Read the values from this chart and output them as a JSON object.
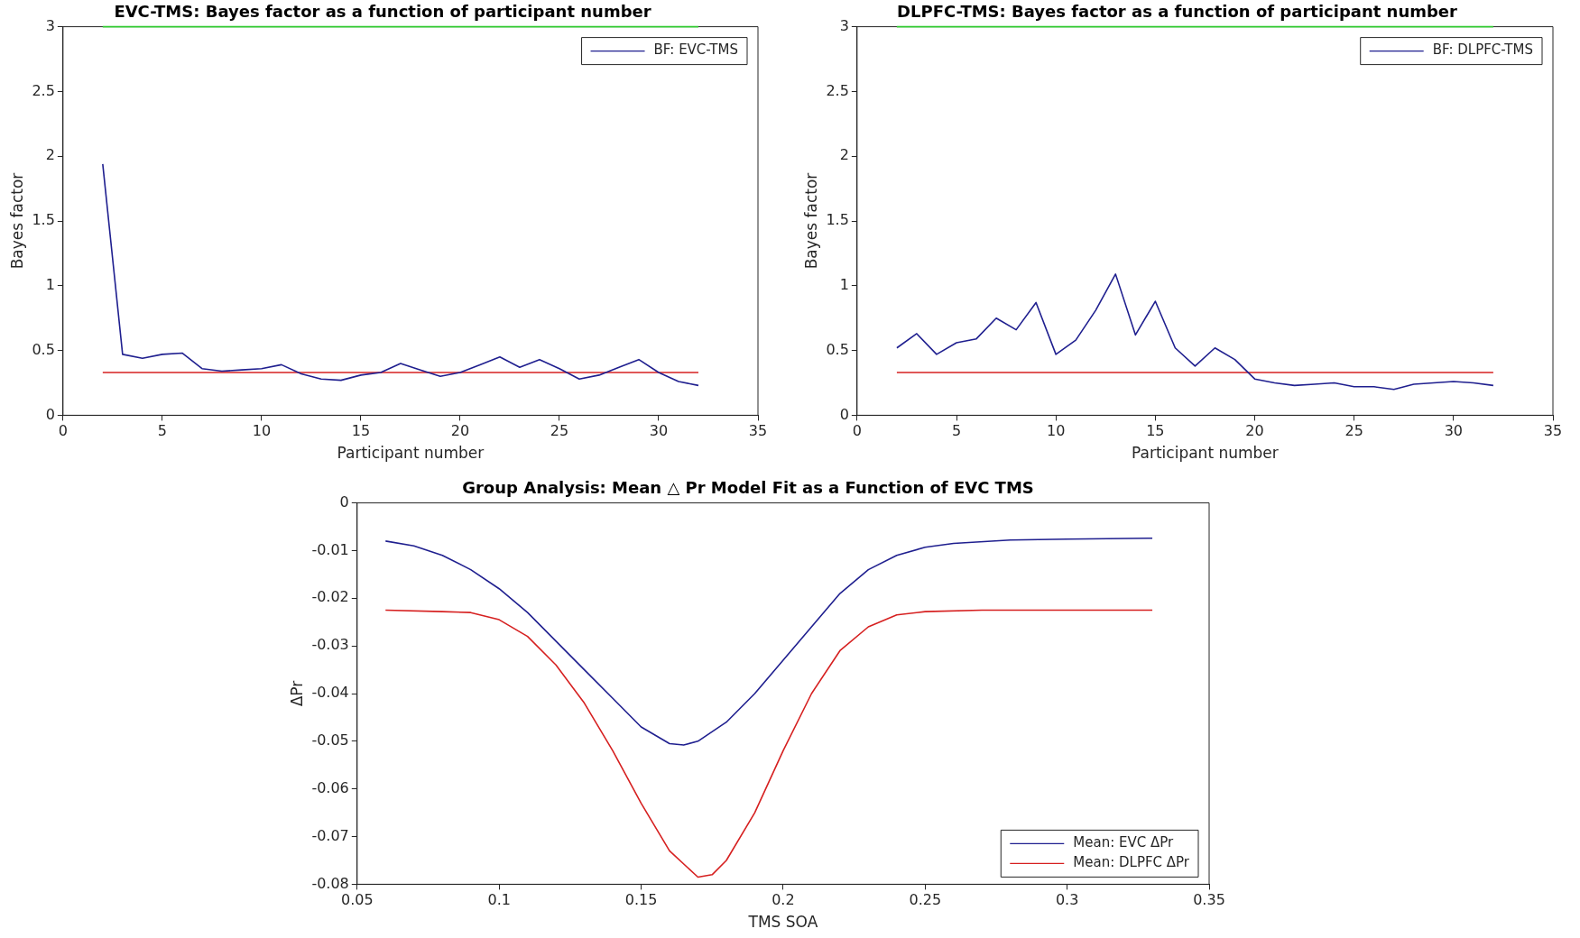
{
  "chart_data": [
    {
      "type": "line",
      "title": "EVC-TMS: Bayes factor as a function of participant number",
      "xlabel": "Participant number",
      "ylabel": "Bayes factor",
      "x": [
        2,
        3,
        4,
        5,
        6,
        7,
        8,
        9,
        10,
        11,
        12,
        13,
        14,
        15,
        16,
        17,
        18,
        19,
        20,
        21,
        22,
        23,
        24,
        25,
        26,
        27,
        28,
        29,
        30,
        31,
        32
      ],
      "xlim": [
        0,
        35
      ],
      "xticks": [
        0,
        5,
        10,
        15,
        20,
        25,
        30,
        35
      ],
      "ylim": [
        0,
        3
      ],
      "yticks": [
        0,
        0.5,
        1,
        1.5,
        2,
        2.5,
        3
      ],
      "grid": false,
      "legend": "top right",
      "marker": "none",
      "line_style": "solid",
      "series": [
        {
          "name": "BF: EVC-TMS",
          "color": "#1f1f8f",
          "values": [
            1.94,
            0.47,
            0.44,
            0.47,
            0.48,
            0.36,
            0.34,
            0.35,
            0.36,
            0.39,
            0.32,
            0.28,
            0.27,
            0.31,
            0.33,
            0.4,
            0.35,
            0.3,
            0.33,
            0.39,
            0.45,
            0.37,
            0.43,
            0.36,
            0.28,
            0.31,
            0.37,
            0.43,
            0.33,
            0.26,
            0.23
          ]
        },
        {
          "color": "#d62020",
          "x": [
            2,
            32
          ],
          "values": [
            0.33,
            0.33
          ]
        },
        {
          "color": "#33cc33",
          "x": [
            2,
            32
          ],
          "values": [
            3,
            3
          ]
        }
      ]
    },
    {
      "type": "line",
      "title": "DLPFC-TMS: Bayes factor as a function of participant number",
      "xlabel": "Participant number",
      "ylabel": "Bayes factor",
      "x": [
        2,
        3,
        4,
        5,
        6,
        7,
        8,
        9,
        10,
        11,
        12,
        13,
        14,
        15,
        16,
        17,
        18,
        19,
        20,
        21,
        22,
        23,
        24,
        25,
        26,
        27,
        28,
        29,
        30,
        31,
        32
      ],
      "xlim": [
        0,
        35
      ],
      "xticks": [
        0,
        5,
        10,
        15,
        20,
        25,
        30,
        35
      ],
      "ylim": [
        0,
        3
      ],
      "yticks": [
        0,
        0.5,
        1,
        1.5,
        2,
        2.5,
        3
      ],
      "grid": false,
      "legend": "top right",
      "marker": "none",
      "line_style": "solid",
      "series": [
        {
          "name": "BF: DLPFC-TMS",
          "color": "#1f1f8f",
          "values": [
            0.52,
            0.63,
            0.47,
            0.56,
            0.59,
            0.75,
            0.66,
            0.87,
            0.47,
            0.58,
            0.81,
            1.09,
            0.62,
            0.88,
            0.52,
            0.38,
            0.52,
            0.43,
            0.28,
            0.25,
            0.23,
            0.24,
            0.25,
            0.22,
            0.22,
            0.2,
            0.24,
            0.25,
            0.26,
            0.25,
            0.23
          ]
        },
        {
          "color": "#d62020",
          "x": [
            2,
            32
          ],
          "values": [
            0.33,
            0.33
          ]
        },
        {
          "color": "#33cc33",
          "x": [
            2,
            32
          ],
          "values": [
            3,
            3
          ]
        }
      ]
    },
    {
      "type": "line",
      "title": "Group Analysis: Mean △ Pr Model Fit as a Function of EVC TMS",
      "xlabel": "TMS SOA",
      "ylabel": "ΔPr",
      "xlim": [
        0.05,
        0.35
      ],
      "xticks": [
        0.05,
        0.1,
        0.15,
        0.2,
        0.25,
        0.3,
        0.35
      ],
      "ylim": [
        -0.08,
        0
      ],
      "yticks": [
        -0.08,
        -0.07,
        -0.06,
        -0.05,
        -0.04,
        -0.03,
        -0.02,
        -0.01,
        0
      ],
      "grid": false,
      "legend": "bottom right",
      "marker": "none",
      "line_style": "solid",
      "series": [
        {
          "name": "Mean: EVC ΔPr",
          "color": "#1f1f8f",
          "x": [
            0.06,
            0.07,
            0.08,
            0.09,
            0.1,
            0.11,
            0.12,
            0.13,
            0.14,
            0.15,
            0.16,
            0.165,
            0.17,
            0.18,
            0.19,
            0.2,
            0.21,
            0.22,
            0.23,
            0.24,
            0.25,
            0.26,
            0.28,
            0.3,
            0.33
          ],
          "values": [
            -0.008,
            -0.009,
            -0.011,
            -0.014,
            -0.018,
            -0.023,
            -0.029,
            -0.035,
            -0.041,
            -0.047,
            -0.0505,
            -0.0508,
            -0.05,
            -0.046,
            -0.04,
            -0.033,
            -0.026,
            -0.019,
            -0.014,
            -0.011,
            -0.0093,
            -0.0085,
            -0.0078,
            -0.0076,
            -0.0074
          ]
        },
        {
          "name": "Mean: DLPFC ΔPr",
          "color": "#d62020",
          "x": [
            0.06,
            0.08,
            0.09,
            0.1,
            0.11,
            0.12,
            0.13,
            0.14,
            0.15,
            0.16,
            0.17,
            0.175,
            0.18,
            0.19,
            0.2,
            0.21,
            0.22,
            0.23,
            0.24,
            0.25,
            0.27,
            0.33
          ],
          "values": [
            -0.0225,
            -0.0228,
            -0.023,
            -0.0245,
            -0.028,
            -0.034,
            -0.042,
            -0.052,
            -0.063,
            -0.073,
            -0.0785,
            -0.078,
            -0.075,
            -0.065,
            -0.052,
            -0.04,
            -0.031,
            -0.026,
            -0.0235,
            -0.0228,
            -0.0225,
            -0.0225
          ]
        }
      ]
    }
  ]
}
